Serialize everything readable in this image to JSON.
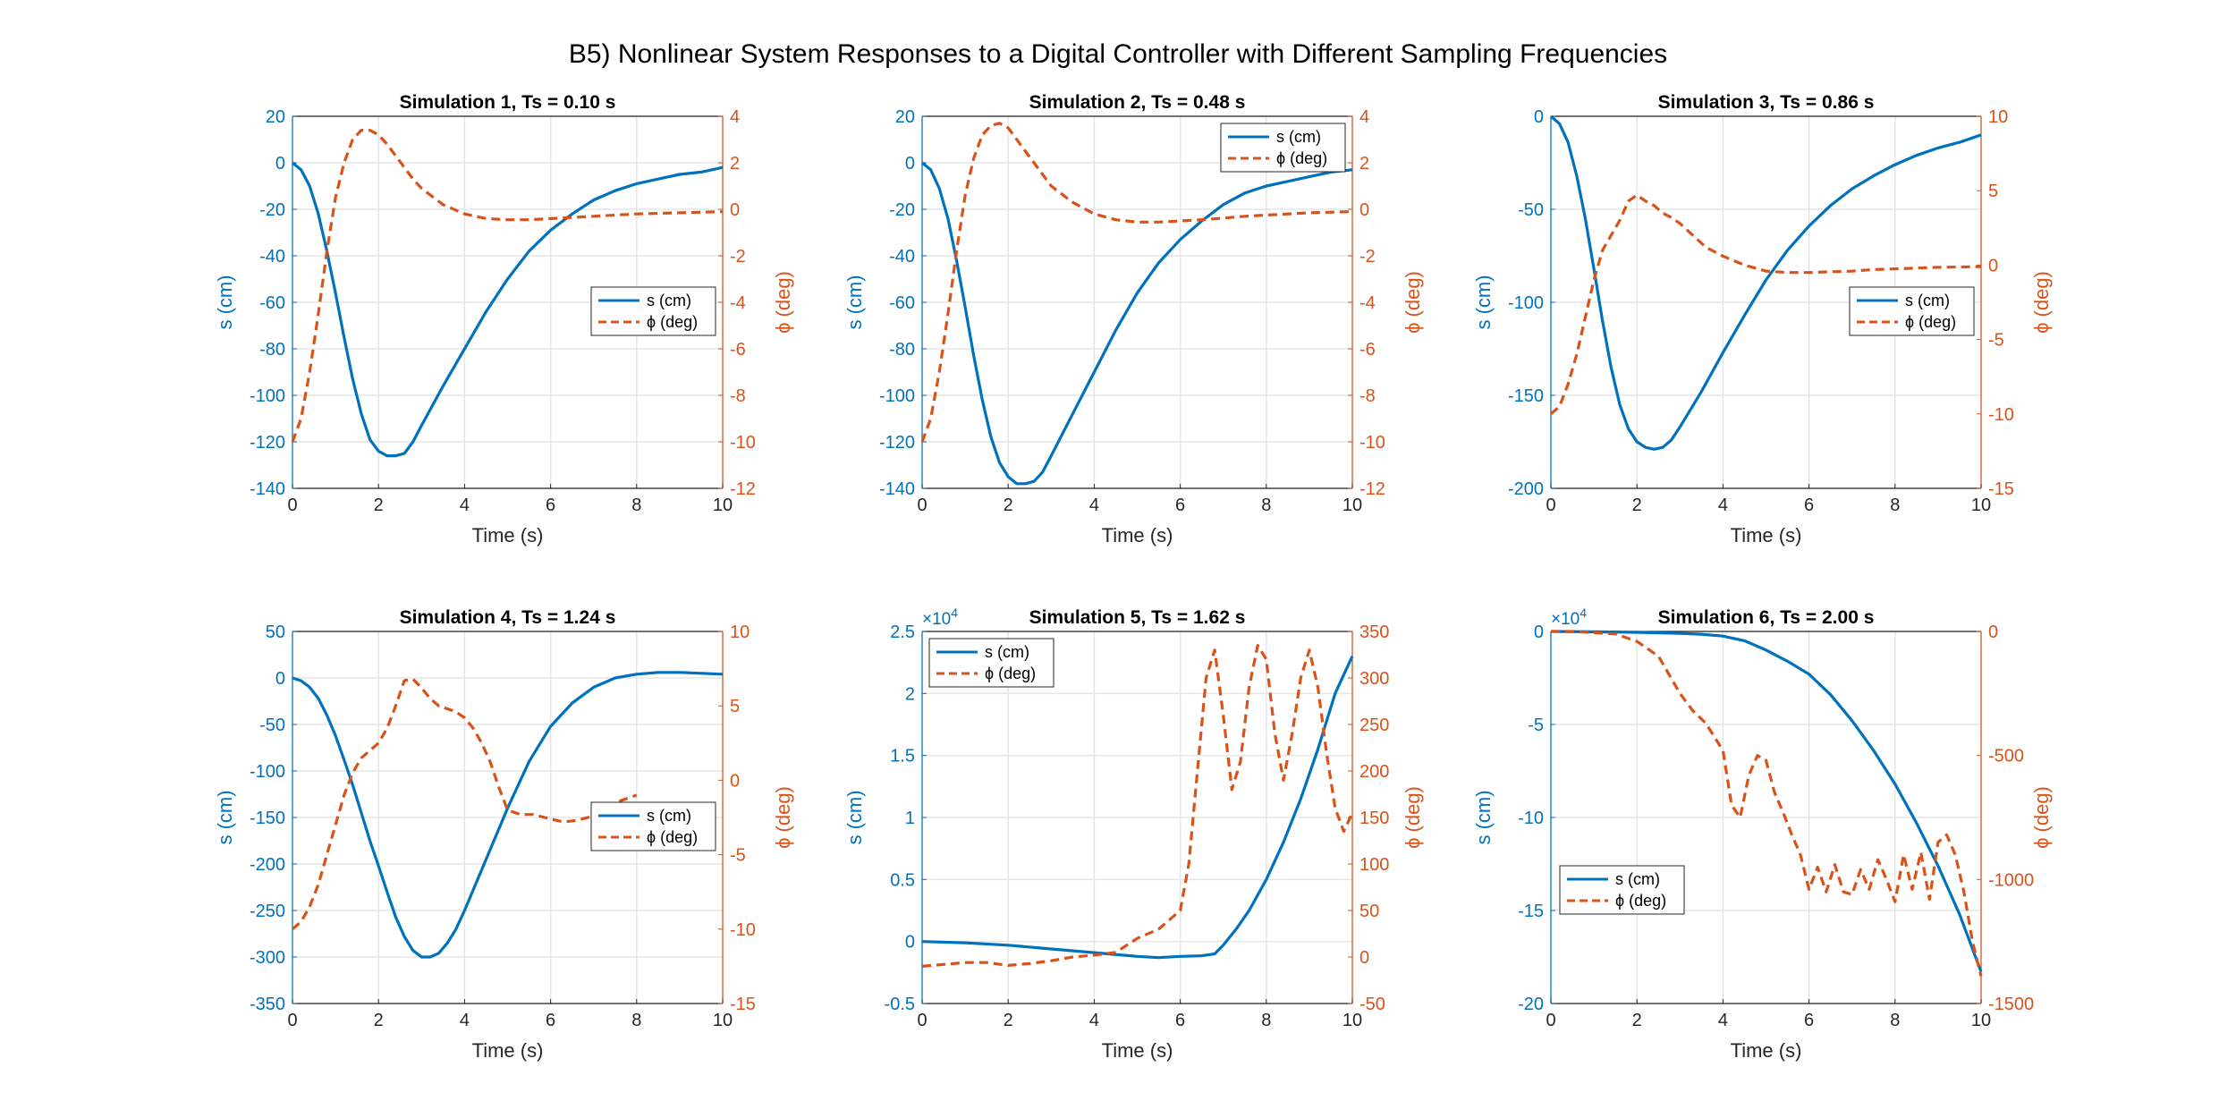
{
  "figure_title": "B5) Nonlinear System Responses to a Digital Controller with Different Sampling Frequencies",
  "colors": {
    "s": "#0072BD",
    "phi": "#D95319",
    "grid": "#e5e5e5",
    "axis": "#262626"
  },
  "chart_data": [
    {
      "type": "line",
      "title": "Simulation 1, Ts = 0.10 s",
      "xlabel": "Time (s)",
      "ylabel_left": "s (cm)",
      "ylabel_right": "ϕ (deg)",
      "xlim": [
        0,
        10
      ],
      "ylim_left": [
        -140,
        20
      ],
      "ylim_right": [
        -12,
        4
      ],
      "xticks": [
        0,
        2,
        4,
        6,
        8,
        10
      ],
      "yticks_left": [
        -140,
        -120,
        -100,
        -80,
        -60,
        -40,
        -20,
        0,
        20
      ],
      "yticks_right": [
        -12,
        -10,
        -8,
        -6,
        -4,
        -2,
        0,
        2,
        4
      ],
      "exponent_label": "",
      "legend_position": "east",
      "legend": [
        "s (cm)",
        "ϕ (deg)"
      ],
      "series": [
        {
          "name": "s (cm)",
          "axis": "left",
          "x": [
            0,
            0.2,
            0.4,
            0.6,
            0.8,
            1.0,
            1.2,
            1.4,
            1.6,
            1.8,
            2.0,
            2.2,
            2.4,
            2.6,
            2.8,
            3.0,
            3.5,
            4.0,
            4.5,
            5.0,
            5.5,
            6.0,
            6.5,
            7.0,
            7.5,
            8.0,
            8.5,
            9.0,
            9.5,
            10
          ],
          "y": [
            0,
            -3,
            -10,
            -22,
            -38,
            -56,
            -75,
            -93,
            -108,
            -119,
            -124,
            -126,
            -126,
            -125,
            -120,
            -113,
            -96,
            -80,
            -64,
            -50,
            -38,
            -29,
            -22,
            -16,
            -12,
            -9,
            -7,
            -5,
            -4,
            -2
          ]
        },
        {
          "name": "ϕ (deg)",
          "axis": "right",
          "x": [
            0,
            0.2,
            0.4,
            0.6,
            0.8,
            1.0,
            1.2,
            1.4,
            1.6,
            1.8,
            2.0,
            2.2,
            2.4,
            2.6,
            2.8,
            3.0,
            3.5,
            4.0,
            4.5,
            5.0,
            5.5,
            6.0,
            6.5,
            7.0,
            7.5,
            8.0,
            9.0,
            10
          ],
          "y": [
            -10,
            -9,
            -7,
            -4.5,
            -1.8,
            0.5,
            2.0,
            3.0,
            3.4,
            3.4,
            3.2,
            2.8,
            2.3,
            1.8,
            1.3,
            0.9,
            0.2,
            -0.2,
            -0.4,
            -0.45,
            -0.45,
            -0.4,
            -0.35,
            -0.3,
            -0.25,
            -0.2,
            -0.15,
            -0.1
          ]
        }
      ]
    },
    {
      "type": "line",
      "title": "Simulation 2, Ts = 0.48 s",
      "xlabel": "Time (s)",
      "ylabel_left": "s (cm)",
      "ylabel_right": "ϕ (deg)",
      "xlim": [
        0,
        10
      ],
      "ylim_left": [
        -140,
        20
      ],
      "ylim_right": [
        -12,
        4
      ],
      "xticks": [
        0,
        2,
        4,
        6,
        8,
        10
      ],
      "yticks_left": [
        -140,
        -120,
        -100,
        -80,
        -60,
        -40,
        -20,
        0,
        20
      ],
      "yticks_right": [
        -12,
        -10,
        -8,
        -6,
        -4,
        -2,
        0,
        2,
        4
      ],
      "exponent_label": "",
      "legend_position": "northeast",
      "legend": [
        "s (cm)",
        "ϕ (deg)"
      ],
      "series": [
        {
          "name": "s (cm)",
          "axis": "left",
          "x": [
            0,
            0.2,
            0.4,
            0.6,
            0.8,
            1.0,
            1.2,
            1.4,
            1.6,
            1.8,
            2.0,
            2.2,
            2.4,
            2.6,
            2.8,
            3.0,
            3.5,
            4.0,
            4.5,
            5.0,
            5.5,
            6.0,
            6.5,
            7.0,
            7.5,
            8.0,
            8.5,
            9.0,
            9.5,
            10
          ],
          "y": [
            0,
            -3,
            -11,
            -24,
            -42,
            -62,
            -83,
            -102,
            -118,
            -129,
            -135,
            -138,
            -138,
            -137,
            -133,
            -126,
            -108,
            -90,
            -72,
            -56,
            -43,
            -33,
            -25,
            -18,
            -13,
            -10,
            -8,
            -6,
            -4,
            -3
          ]
        },
        {
          "name": "ϕ (deg)",
          "axis": "right",
          "x": [
            0,
            0.2,
            0.4,
            0.6,
            0.8,
            1.0,
            1.2,
            1.4,
            1.6,
            1.8,
            2.0,
            2.2,
            2.4,
            2.6,
            2.8,
            3.0,
            3.5,
            4.0,
            4.5,
            5.0,
            5.5,
            6.0,
            6.5,
            7.0,
            7.5,
            8.0,
            9.0,
            10
          ],
          "y": [
            -10,
            -9,
            -7,
            -4.5,
            -1.8,
            0.6,
            2.2,
            3.2,
            3.6,
            3.7,
            3.5,
            3.0,
            2.5,
            2.0,
            1.5,
            1.0,
            0.3,
            -0.2,
            -0.45,
            -0.55,
            -0.55,
            -0.5,
            -0.45,
            -0.38,
            -0.3,
            -0.25,
            -0.15,
            -0.1
          ]
        }
      ]
    },
    {
      "type": "line",
      "title": "Simulation 3, Ts = 0.86 s",
      "xlabel": "Time (s)",
      "ylabel_left": "s (cm)",
      "ylabel_right": "ϕ (deg)",
      "xlim": [
        0,
        10
      ],
      "ylim_left": [
        -200,
        0
      ],
      "ylim_right": [
        -15,
        10
      ],
      "xticks": [
        0,
        2,
        4,
        6,
        8,
        10
      ],
      "yticks_left": [
        -200,
        -150,
        -100,
        -50,
        0
      ],
      "yticks_right": [
        -15,
        -10,
        -5,
        0,
        5,
        10
      ],
      "exponent_label": "",
      "legend_position": "east",
      "legend": [
        "s (cm)",
        "ϕ (deg)"
      ],
      "series": [
        {
          "name": "s (cm)",
          "axis": "left",
          "x": [
            0,
            0.2,
            0.4,
            0.6,
            0.8,
            1.0,
            1.2,
            1.4,
            1.6,
            1.8,
            2.0,
            2.2,
            2.4,
            2.6,
            2.8,
            3.0,
            3.5,
            4.0,
            4.5,
            5.0,
            5.5,
            6.0,
            6.5,
            7.0,
            7.5,
            8.0,
            8.5,
            9.0,
            9.5,
            10
          ],
          "y": [
            0,
            -4,
            -14,
            -32,
            -55,
            -82,
            -110,
            -135,
            -155,
            -168,
            -175,
            -178,
            -179,
            -178,
            -174,
            -167,
            -148,
            -127,
            -107,
            -88,
            -72,
            -59,
            -48,
            -39,
            -32,
            -26,
            -21,
            -17,
            -14,
            -10
          ]
        },
        {
          "name": "ϕ (deg)",
          "axis": "right",
          "x": [
            0,
            0.2,
            0.4,
            0.6,
            0.8,
            1.0,
            1.2,
            1.4,
            1.6,
            1.8,
            2.0,
            2.2,
            2.4,
            2.6,
            2.8,
            3.0,
            3.3,
            3.6,
            4.0,
            4.5,
            5.0,
            5.5,
            6.0,
            6.5,
            7.0,
            7.5,
            8.0,
            9.0,
            10
          ],
          "y": [
            -10,
            -9.5,
            -8,
            -6,
            -3.5,
            -1,
            1,
            2,
            3,
            4.3,
            4.7,
            4.3,
            4,
            3.5,
            3.2,
            2.8,
            2,
            1.2,
            0.6,
            0,
            -0.4,
            -0.5,
            -0.5,
            -0.45,
            -0.4,
            -0.3,
            -0.25,
            -0.15,
            -0.1
          ]
        }
      ]
    },
    {
      "type": "line",
      "title": "Simulation 4, Ts = 1.24 s",
      "xlabel": "Time (s)",
      "ylabel_left": "s (cm)",
      "ylabel_right": "ϕ (deg)",
      "xlim": [
        0,
        10
      ],
      "ylim_left": [
        -350,
        50
      ],
      "ylim_right": [
        -15,
        10
      ],
      "xticks": [
        0,
        2,
        4,
        6,
        8,
        10
      ],
      "yticks_left": [
        -350,
        -300,
        -250,
        -200,
        -150,
        -100,
        -50,
        0,
        50
      ],
      "yticks_right": [
        -15,
        -10,
        -5,
        0,
        5,
        10
      ],
      "exponent_label": "",
      "legend_position": "east",
      "legend": [
        "s (cm)",
        "ϕ (deg)"
      ],
      "series": [
        {
          "name": "s (cm)",
          "axis": "left",
          "x": [
            0,
            0.2,
            0.4,
            0.6,
            0.8,
            1.0,
            1.2,
            1.4,
            1.6,
            1.8,
            2.0,
            2.2,
            2.4,
            2.6,
            2.8,
            3.0,
            3.2,
            3.4,
            3.6,
            3.8,
            4.0,
            4.5,
            5.0,
            5.5,
            6.0,
            6.5,
            7.0,
            7.5,
            8.0,
            8.5,
            9.0,
            9.5,
            10
          ],
          "y": [
            0,
            -3,
            -10,
            -22,
            -40,
            -62,
            -88,
            -115,
            -145,
            -175,
            -202,
            -230,
            -257,
            -278,
            -293,
            -300,
            -300,
            -296,
            -285,
            -270,
            -250,
            -195,
            -140,
            -90,
            -52,
            -27,
            -10,
            0,
            4,
            6,
            6,
            5,
            4
          ]
        },
        {
          "name": "ϕ (deg)",
          "axis": "right",
          "x": [
            0,
            0.2,
            0.4,
            0.6,
            0.8,
            1.0,
            1.2,
            1.4,
            1.6,
            1.8,
            2.0,
            2.2,
            2.4,
            2.6,
            2.8,
            3.0,
            3.2,
            3.4,
            3.6,
            3.8,
            4.0,
            4.2,
            4.4,
            4.6,
            4.8,
            5.0,
            5.3,
            5.6,
            6.0,
            6.3,
            6.6,
            7.0,
            7.5,
            8.0
          ],
          "y": [
            -10,
            -9.5,
            -8.5,
            -7,
            -5,
            -3,
            -1,
            0.5,
            1.5,
            2,
            2.5,
            3.5,
            5,
            6.7,
            6.8,
            6.2,
            5.5,
            5,
            4.8,
            4.6,
            4.2,
            3.5,
            2.5,
            1.2,
            -0.5,
            -2,
            -2.3,
            -2.3,
            -2.6,
            -2.8,
            -2.7,
            -2.4,
            -1.5,
            -1
          ]
        }
      ]
    },
    {
      "type": "line",
      "title": "Simulation 5, Ts = 1.62 s",
      "xlabel": "Time (s)",
      "ylabel_left": "s (cm)",
      "ylabel_right": "ϕ (deg)",
      "xlim": [
        0,
        10
      ],
      "ylim_left": [
        -0.5,
        2.5
      ],
      "ylim_right": [
        -50,
        350
      ],
      "xticks": [
        0,
        2,
        4,
        6,
        8,
        10
      ],
      "yticks_left": [
        -0.5,
        0,
        0.5,
        1,
        1.5,
        2,
        2.5
      ],
      "yticks_right": [
        -50,
        0,
        50,
        100,
        150,
        200,
        250,
        300,
        350
      ],
      "exponent_label": "×10",
      "exponent_power": "4",
      "legend_position": "northwest",
      "legend": [
        "s (cm)",
        "ϕ (deg)"
      ],
      "series": [
        {
          "name": "s (cm)",
          "axis": "left",
          "x": [
            0,
            1,
            2,
            3,
            4,
            5,
            5.5,
            6,
            6.5,
            6.8,
            7,
            7.3,
            7.6,
            8,
            8.4,
            8.8,
            9.2,
            9.6,
            10
          ],
          "y": [
            0,
            -0.01,
            -0.03,
            -0.06,
            -0.09,
            -0.12,
            -0.13,
            -0.12,
            -0.115,
            -0.1,
            -0.03,
            0.1,
            0.25,
            0.5,
            0.8,
            1.15,
            1.55,
            2.0,
            2.3
          ]
        },
        {
          "name": "ϕ (deg)",
          "axis": "right",
          "x": [
            0,
            0.5,
            1,
            1.5,
            2,
            2.5,
            3,
            3.5,
            4,
            4.5,
            5,
            5.5,
            6,
            6.2,
            6.4,
            6.6,
            6.8,
            7.0,
            7.2,
            7.4,
            7.6,
            7.8,
            8.0,
            8.2,
            8.4,
            8.6,
            8.8,
            9.0,
            9.2,
            9.4,
            9.6,
            9.8,
            10
          ],
          "y": [
            -10,
            -8,
            -6,
            -6,
            -9,
            -7,
            -4,
            0,
            2,
            5,
            20,
            30,
            50,
            100,
            200,
            300,
            330,
            260,
            180,
            210,
            290,
            335,
            320,
            240,
            190,
            240,
            300,
            330,
            290,
            220,
            160,
            135,
            155
          ]
        }
      ]
    },
    {
      "type": "line",
      "title": "Simulation 6, Ts = 2.00 s",
      "xlabel": "Time (s)",
      "ylabel_left": "s (cm)",
      "ylabel_right": "ϕ (deg)",
      "xlim": [
        0,
        10
      ],
      "ylim_left": [
        -20,
        0
      ],
      "ylim_right": [
        -1500,
        0
      ],
      "xticks": [
        0,
        2,
        4,
        6,
        8,
        10
      ],
      "yticks_left": [
        -20,
        -15,
        -10,
        -5,
        0
      ],
      "yticks_right": [
        -1500,
        -1000,
        -500,
        0
      ],
      "exponent_label": "×10",
      "exponent_power": "4",
      "legend_position": "southwest",
      "legend": [
        "s (cm)",
        "ϕ (deg)"
      ],
      "series": [
        {
          "name": "s (cm)",
          "axis": "left",
          "x": [
            0,
            1,
            2,
            3,
            3.5,
            4,
            4.5,
            5,
            5.5,
            6,
            6.5,
            7,
            7.5,
            8,
            8.5,
            9,
            9.5,
            10
          ],
          "y": [
            0,
            -0.02,
            -0.05,
            -0.1,
            -0.15,
            -0.25,
            -0.5,
            -1.0,
            -1.6,
            -2.3,
            -3.4,
            -4.8,
            -6.4,
            -8.2,
            -10.3,
            -12.6,
            -15.2,
            -18.3
          ]
        },
        {
          "name": "ϕ (deg)",
          "axis": "right",
          "x": [
            0,
            0.5,
            1,
            1.5,
            2,
            2.5,
            3,
            3.3,
            3.6,
            4,
            4.2,
            4.4,
            4.6,
            4.8,
            5.0,
            5.2,
            5.4,
            5.6,
            5.8,
            6.0,
            6.2,
            6.4,
            6.6,
            6.8,
            7.0,
            7.2,
            7.4,
            7.6,
            7.8,
            8.0,
            8.2,
            8.4,
            8.6,
            8.8,
            9.0,
            9.2,
            9.4,
            9.6,
            9.8,
            10
          ],
          "y": [
            0,
            0,
            -5,
            -10,
            -40,
            -100,
            -250,
            -320,
            -370,
            -480,
            -700,
            -750,
            -580,
            -500,
            -520,
            -650,
            -730,
            -820,
            -900,
            -1040,
            -950,
            -1050,
            -940,
            -1050,
            -1060,
            -960,
            -1040,
            -920,
            -1000,
            -1090,
            -900,
            -1040,
            -890,
            -1080,
            -850,
            -820,
            -900,
            -1050,
            -1250,
            -1390
          ]
        }
      ]
    }
  ]
}
